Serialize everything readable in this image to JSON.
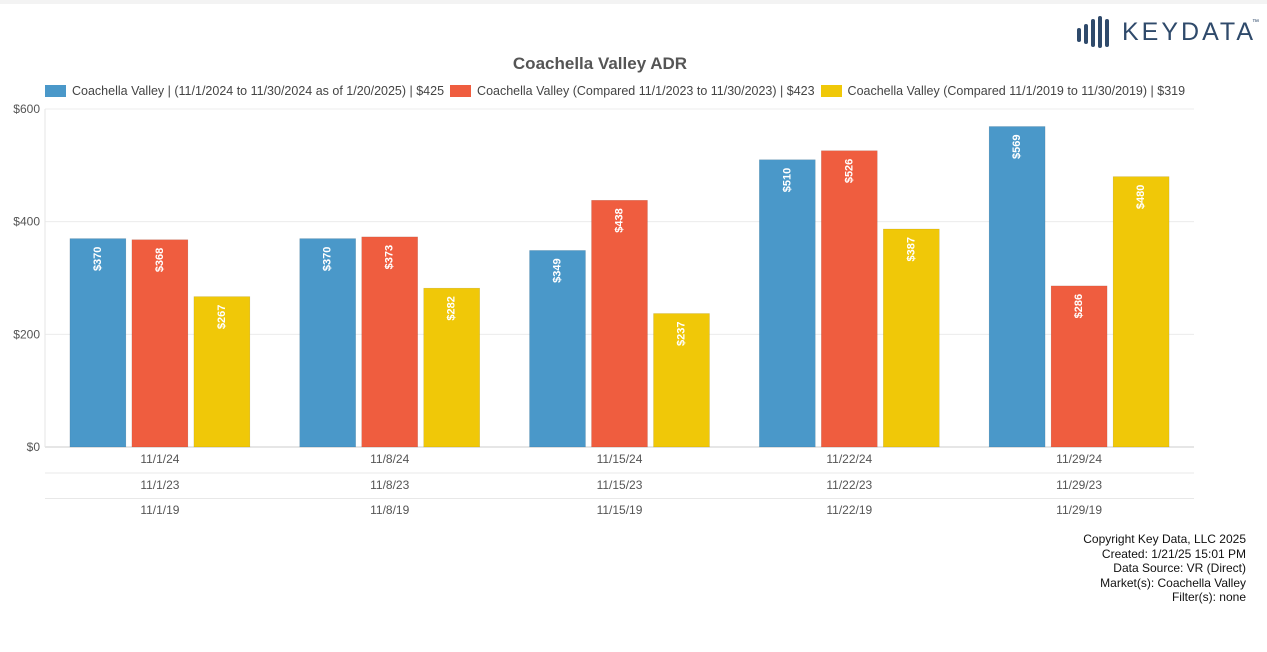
{
  "brand": {
    "logo_text": "KEYDATA",
    "logo_tm": "™",
    "logo_color": "#2f4a6b"
  },
  "chart_data": {
    "type": "bar",
    "title": "Coachella Valley ADR",
    "xlabel": "",
    "ylabel": "",
    "ylim": [
      0,
      600
    ],
    "y_ticks": [
      "$0",
      "$200",
      "$400",
      "$600"
    ],
    "y_tick_values": [
      0,
      200,
      400,
      600
    ],
    "grid": true,
    "legend_position": "top",
    "categories": [
      "11/1/24",
      "11/8/24",
      "11/15/24",
      "11/22/24",
      "11/29/24"
    ],
    "category_rows": [
      [
        "11/1/24",
        "11/8/24",
        "11/15/24",
        "11/22/24",
        "11/29/24"
      ],
      [
        "11/1/23",
        "11/8/23",
        "11/15/23",
        "11/22/23",
        "11/29/23"
      ],
      [
        "11/1/19",
        "11/8/19",
        "11/15/19",
        "11/22/19",
        "11/29/19"
      ]
    ],
    "series": [
      {
        "name": "Coachella Valley | (11/1/2024 to 11/30/2024 as of 1/20/2025) | $425",
        "color": "#4a98c9",
        "values": [
          370,
          370,
          349,
          510,
          569
        ],
        "labels": [
          "$370",
          "$370",
          "$349",
          "$510",
          "$569"
        ]
      },
      {
        "name": "Coachella Valley (Compared 11/1/2023 to 11/30/2023) | $423",
        "color": "#ef5d3f",
        "values": [
          368,
          373,
          438,
          526,
          286
        ],
        "labels": [
          "$368",
          "$373",
          "$438",
          "$526",
          "$286"
        ]
      },
      {
        "name": "Coachella Valley (Compared 11/1/2019 to 11/30/2019) | $319",
        "color": "#f0c808",
        "values": [
          267,
          282,
          237,
          387,
          480
        ],
        "labels": [
          "$267",
          "$282",
          "$237",
          "$387",
          "$480"
        ]
      }
    ]
  },
  "footer": {
    "copyright": "Copyright Key Data, LLC 2025",
    "created": "Created: 1/21/25 15:01 PM",
    "source": "Data Source: VR (Direct)",
    "markets": "Market(s):  Coachella Valley",
    "filters": "Filter(s): none"
  }
}
